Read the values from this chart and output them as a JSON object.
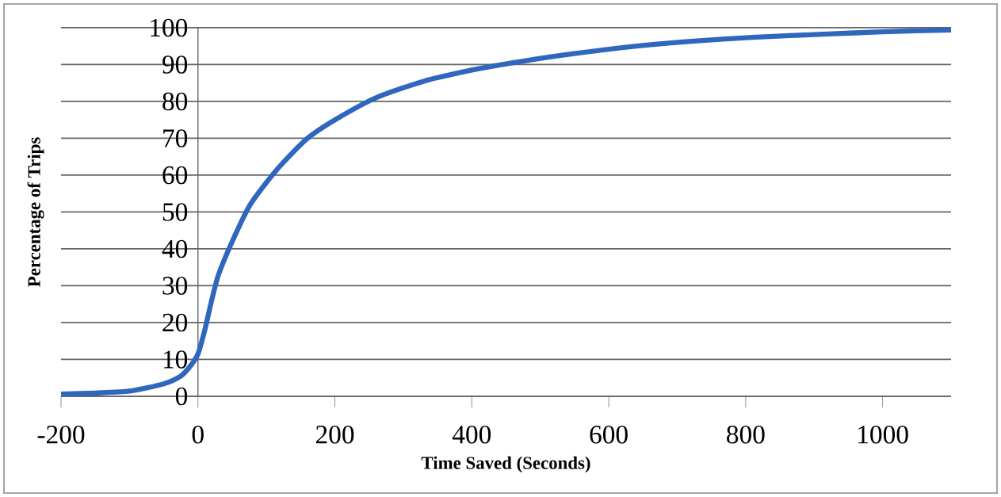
{
  "chart_data": {
    "type": "line",
    "xlabel": "Time Saved (Seconds)",
    "ylabel": "Percentage of Trips",
    "x": [
      -200,
      -150,
      -100,
      -50,
      -25,
      -10,
      0,
      10,
      20,
      30,
      50,
      75,
      100,
      125,
      160,
      200,
      260,
      330,
      400,
      450,
      530,
      630,
      720,
      810,
      920,
      1000,
      1100
    ],
    "series": [
      {
        "color": "#2f66be",
        "values": [
          0.6,
          0.9,
          1.4,
          3.4,
          5.5,
          8.5,
          11.5,
          18,
          26,
          33,
          42,
          51.6,
          58,
          63.5,
          70,
          75,
          81,
          85.5,
          88.5,
          90.2,
          92.5,
          94.8,
          96.3,
          97.4,
          98.3,
          98.9,
          99.4
        ]
      }
    ],
    "xlim": [
      -200,
      1100
    ],
    "ylim": [
      0,
      100
    ],
    "xticks": [
      -200,
      0,
      200,
      400,
      600,
      800,
      1000
    ],
    "yticks": [
      0,
      10,
      20,
      30,
      40,
      50,
      60,
      70,
      80,
      90,
      100
    ],
    "grid": "y",
    "marker": "none",
    "line_style": "solid"
  }
}
